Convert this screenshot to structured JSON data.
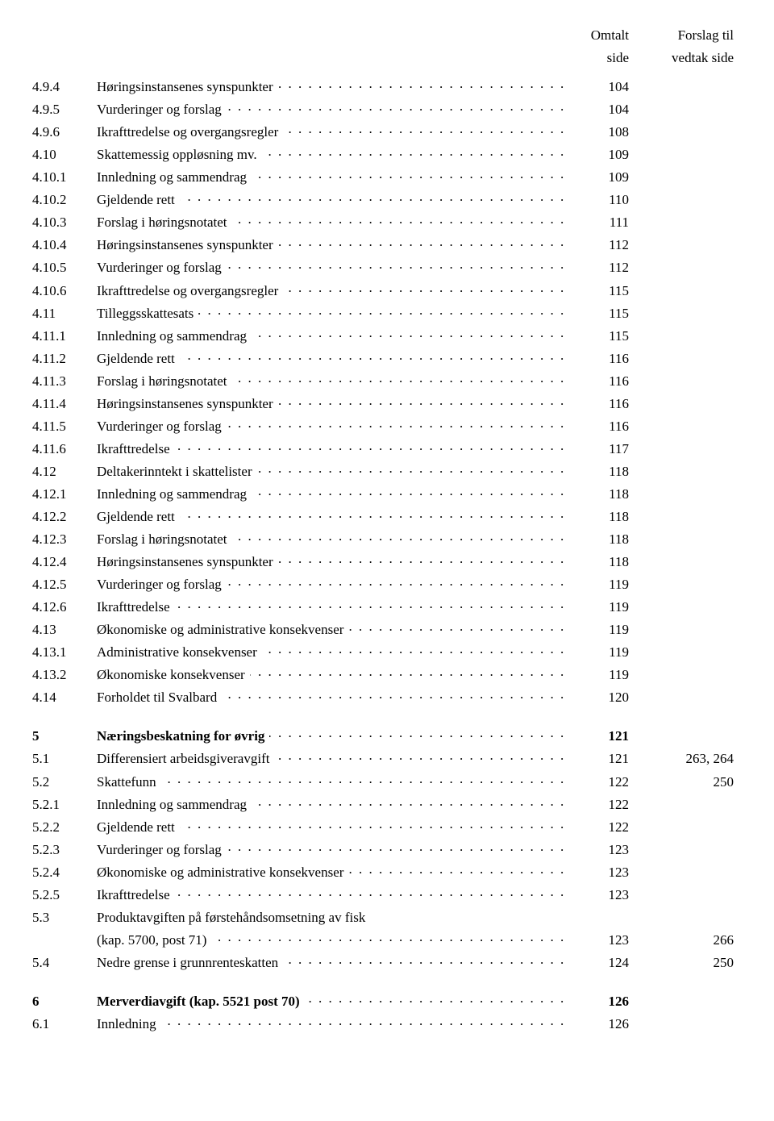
{
  "header": {
    "page_col_line1": "Omtalt",
    "page_col_line2": "side",
    "vedtak_col_line1": "Forslag til",
    "vedtak_col_line2": "vedtak side"
  },
  "rows": [
    {
      "num": "4.9.4",
      "title": "Høringsinstansenes synspunkter",
      "page": "104",
      "vedtak": "",
      "bold": false,
      "spacer": false
    },
    {
      "num": "4.9.5",
      "title": "Vurderinger og forslag",
      "page": "104",
      "vedtak": "",
      "bold": false,
      "spacer": false
    },
    {
      "num": "4.9.6",
      "title": "Ikrafttredelse og overgangsregler",
      "page": "108",
      "vedtak": "",
      "bold": false,
      "spacer": false
    },
    {
      "num": "4.10",
      "title": "Skattemessig oppløsning mv.",
      "page": "109",
      "vedtak": "",
      "bold": false,
      "spacer": false
    },
    {
      "num": "4.10.1",
      "title": "Innledning og sammendrag",
      "page": "109",
      "vedtak": "",
      "bold": false,
      "spacer": false
    },
    {
      "num": "4.10.2",
      "title": "Gjeldende rett",
      "page": "110",
      "vedtak": "",
      "bold": false,
      "spacer": false
    },
    {
      "num": "4.10.3",
      "title": "Forslag i høringsnotatet",
      "page": "111",
      "vedtak": "",
      "bold": false,
      "spacer": false
    },
    {
      "num": "4.10.4",
      "title": "Høringsinstansenes synspunkter",
      "page": "112",
      "vedtak": "",
      "bold": false,
      "spacer": false
    },
    {
      "num": "4.10.5",
      "title": "Vurderinger og forslag",
      "page": "112",
      "vedtak": "",
      "bold": false,
      "spacer": false
    },
    {
      "num": "4.10.6",
      "title": "Ikrafttredelse og overgangsregler",
      "page": "115",
      "vedtak": "",
      "bold": false,
      "spacer": false
    },
    {
      "num": "4.11",
      "title": "Tilleggsskattesats",
      "page": "115",
      "vedtak": "",
      "bold": false,
      "spacer": false
    },
    {
      "num": "4.11.1",
      "title": "Innledning og sammendrag",
      "page": "115",
      "vedtak": "",
      "bold": false,
      "spacer": false
    },
    {
      "num": "4.11.2",
      "title": "Gjeldende rett",
      "page": "116",
      "vedtak": "",
      "bold": false,
      "spacer": false
    },
    {
      "num": "4.11.3",
      "title": "Forslag i høringsnotatet",
      "page": "116",
      "vedtak": "",
      "bold": false,
      "spacer": false
    },
    {
      "num": "4.11.4",
      "title": "Høringsinstansenes synspunkter",
      "page": "116",
      "vedtak": "",
      "bold": false,
      "spacer": false
    },
    {
      "num": "4.11.5",
      "title": "Vurderinger og forslag",
      "page": "116",
      "vedtak": "",
      "bold": false,
      "spacer": false
    },
    {
      "num": "4.11.6",
      "title": "Ikrafttredelse",
      "page": "117",
      "vedtak": "",
      "bold": false,
      "spacer": false
    },
    {
      "num": "4.12",
      "title": "Deltakerinntekt i skattelister",
      "page": "118",
      "vedtak": "",
      "bold": false,
      "spacer": false
    },
    {
      "num": "4.12.1",
      "title": "Innledning og sammendrag",
      "page": "118",
      "vedtak": "",
      "bold": false,
      "spacer": false
    },
    {
      "num": "4.12.2",
      "title": "Gjeldende rett",
      "page": "118",
      "vedtak": "",
      "bold": false,
      "spacer": false
    },
    {
      "num": "4.12.3",
      "title": "Forslag i høringsnotatet",
      "page": "118",
      "vedtak": "",
      "bold": false,
      "spacer": false
    },
    {
      "num": "4.12.4",
      "title": "Høringsinstansenes synspunkter",
      "page": "118",
      "vedtak": "",
      "bold": false,
      "spacer": false
    },
    {
      "num": "4.12.5",
      "title": "Vurderinger og forslag",
      "page": "119",
      "vedtak": "",
      "bold": false,
      "spacer": false
    },
    {
      "num": "4.12.6",
      "title": "Ikrafttredelse",
      "page": "119",
      "vedtak": "",
      "bold": false,
      "spacer": false
    },
    {
      "num": "4.13",
      "title": "Økonomiske og administrative konsekvenser",
      "page": "119",
      "vedtak": "",
      "bold": false,
      "spacer": false
    },
    {
      "num": "4.13.1",
      "title": "Administrative konsekvenser",
      "page": "119",
      "vedtak": "",
      "bold": false,
      "spacer": false
    },
    {
      "num": "4.13.2",
      "title": "Økonomiske konsekvenser",
      "page": "119",
      "vedtak": "",
      "bold": false,
      "spacer": false
    },
    {
      "num": "4.14",
      "title": "Forholdet til Svalbard",
      "page": "120",
      "vedtak": "",
      "bold": false,
      "spacer": false
    },
    {
      "num": "5",
      "title": "Næringsbeskatning for øvrig",
      "page": "121",
      "vedtak": "",
      "bold": true,
      "spacer": true
    },
    {
      "num": "5.1",
      "title": "Differensiert arbeidsgiveravgift",
      "page": "121",
      "vedtak": "263, 264",
      "bold": false,
      "spacer": false
    },
    {
      "num": "5.2",
      "title": "Skattefunn",
      "page": "122",
      "vedtak": "250",
      "bold": false,
      "spacer": false
    },
    {
      "num": "5.2.1",
      "title": "Innledning og sammendrag",
      "page": "122",
      "vedtak": "",
      "bold": false,
      "spacer": false
    },
    {
      "num": "5.2.2",
      "title": "Gjeldende rett",
      "page": "122",
      "vedtak": "",
      "bold": false,
      "spacer": false
    },
    {
      "num": "5.2.3",
      "title": "Vurderinger og forslag",
      "page": "123",
      "vedtak": "",
      "bold": false,
      "spacer": false
    },
    {
      "num": "5.2.4",
      "title": "Økonomiske og administrative konsekvenser",
      "page": "123",
      "vedtak": "",
      "bold": false,
      "spacer": false
    },
    {
      "num": "5.2.5",
      "title": "Ikrafttredelse",
      "page": "123",
      "vedtak": "",
      "bold": false,
      "spacer": false
    },
    {
      "num": "5.3",
      "title": "Produktavgiften på førstehåndsomsetning av fisk (kap. 5700, post 71)",
      "page": "123",
      "vedtak": "266",
      "bold": false,
      "spacer": false,
      "twoline": true,
      "title_line1": "Produktavgiften på førstehåndsomsetning av fisk",
      "title_line2": "(kap. 5700, post 71)"
    },
    {
      "num": "5.4",
      "title": "Nedre grense i grunnrenteskatten",
      "page": "124",
      "vedtak": "250",
      "bold": false,
      "spacer": false
    },
    {
      "num": "6",
      "title": "Merverdiavgift (kap. 5521 post 70)",
      "page": "126",
      "vedtak": "",
      "bold": true,
      "spacer": true
    },
    {
      "num": "6.1",
      "title": "Innledning",
      "page": "126",
      "vedtak": "",
      "bold": false,
      "spacer": false
    }
  ]
}
